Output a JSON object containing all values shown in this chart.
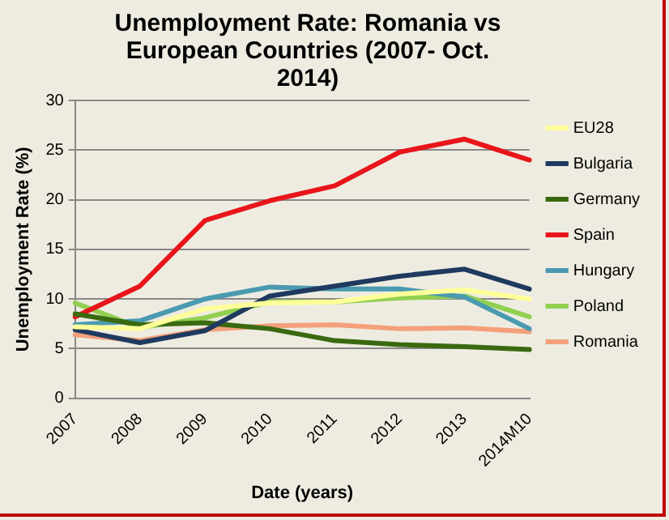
{
  "chart_data": {
    "type": "line",
    "title": "Unemployment Rate: Romania vs European Countries (2007- Oct. 2014)",
    "xlabel": "Date (years)",
    "ylabel": "Unemployment Rate (%)",
    "categories": [
      "2007",
      "2008",
      "2009",
      "2010",
      "2011",
      "2012",
      "2013",
      "2014M10"
    ],
    "ylim": [
      0,
      30
    ],
    "yticks": [
      0,
      5,
      10,
      15,
      20,
      25,
      30
    ],
    "grid": "y",
    "legend": "right",
    "marker": "none",
    "line_style": "solid",
    "series": [
      {
        "name": "EU28",
        "color": "#ffff99",
        "values": [
          7.2,
          7.0,
          9.0,
          9.6,
          9.7,
          10.5,
          10.9,
          10.0
        ]
      },
      {
        "name": "Bulgaria",
        "color": "#1f3a5f",
        "values": [
          6.9,
          5.6,
          6.8,
          10.3,
          11.3,
          12.3,
          13.0,
          11.0
        ]
      },
      {
        "name": "Germany",
        "color": "#3a6a10",
        "values": [
          8.5,
          7.4,
          7.6,
          7.0,
          5.8,
          5.4,
          5.2,
          4.9
        ]
      },
      {
        "name": "Spain",
        "color": "#e8151b",
        "values": [
          8.2,
          11.3,
          17.9,
          19.9,
          21.4,
          24.8,
          26.1,
          24.0
        ]
      },
      {
        "name": "Hungary",
        "color": "#4a9ab0",
        "values": [
          7.4,
          7.8,
          10.0,
          11.2,
          11.0,
          11.0,
          10.2,
          7.0
        ]
      },
      {
        "name": "Poland",
        "color": "#92d050",
        "values": [
          9.6,
          7.1,
          8.1,
          9.7,
          9.7,
          10.1,
          10.3,
          8.2
        ]
      },
      {
        "name": "Romania",
        "color": "#f4a07a",
        "values": [
          6.4,
          5.8,
          6.9,
          7.3,
          7.4,
          7.0,
          7.1,
          6.7
        ]
      }
    ]
  }
}
